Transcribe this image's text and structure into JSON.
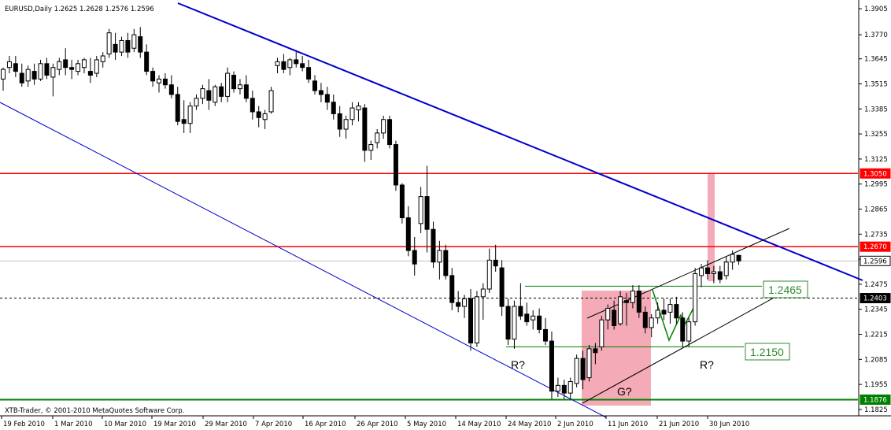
{
  "chart_data": {
    "type": "candlestick",
    "title": "EURUSD,Daily  1.2625 1.2628 1.2576 1.2596",
    "footer": "XTB-Trader, © 2001-2010 MetaQuotes Software Corp.",
    "ylim": [
      1.1792,
      1.3934
    ],
    "y_ticks": [
      "1.3905",
      "1.3770",
      "1.3645",
      "1.3515",
      "1.3385",
      "1.3255",
      "1.3125",
      "1.2995",
      "1.2865",
      "1.2735",
      "1.2605",
      "1.2475",
      "1.2345",
      "1.2215",
      "1.2085",
      "1.1955",
      "1.1825"
    ],
    "x_ticks": [
      "19 Feb 2010",
      "1 Mar 2010",
      "10 Mar 2010",
      "19 Mar 2010",
      "29 Mar 2010",
      "7 Apr 2010",
      "16 Apr 2010",
      "26 Apr 2010",
      "5 May 2010",
      "14 May 2010",
      "24 May 2010",
      "2 Jun 2010",
      "11 Jun 2010",
      "21 Jun 2010",
      "30 Jun 2010"
    ],
    "price_badges": [
      {
        "label": "1.3050",
        "value": 1.305,
        "bg": "#ff0000",
        "fg": "#ffffff"
      },
      {
        "label": "1.2670",
        "value": 1.267,
        "bg": "#ff0000",
        "fg": "#ffffff"
      },
      {
        "label": "1.2596",
        "value": 1.2596,
        "bg": "#ffffff",
        "fg": "#000000"
      },
      {
        "label": "1.2403",
        "value": 1.2403,
        "bg": "#000000",
        "fg": "#ffffff"
      },
      {
        "label": "1.1876",
        "value": 1.1876,
        "bg": "#008000",
        "fg": "#ffffff"
      }
    ],
    "level_labels": [
      "1.2465",
      "1.2150"
    ],
    "annotations": [
      "R?",
      "R?",
      "G?"
    ],
    "colors": {
      "resistance": "#ff0000",
      "support": "#008000",
      "trendline": "#0000cc",
      "highlight": "#f4aab7",
      "candle": "#000000"
    },
    "candles": [
      {
        "o": 1.354,
        "h": 1.36,
        "l": 1.348,
        "c": 1.359
      },
      {
        "o": 1.36,
        "h": 1.366,
        "l": 1.357,
        "c": 1.363
      },
      {
        "o": 1.362,
        "h": 1.366,
        "l": 1.355,
        "c": 1.358
      },
      {
        "o": 1.357,
        "h": 1.362,
        "l": 1.35,
        "c": 1.352
      },
      {
        "o": 1.353,
        "h": 1.361,
        "l": 1.35,
        "c": 1.359
      },
      {
        "o": 1.358,
        "h": 1.362,
        "l": 1.351,
        "c": 1.354
      },
      {
        "o": 1.354,
        "h": 1.364,
        "l": 1.353,
        "c": 1.362
      },
      {
        "o": 1.362,
        "h": 1.365,
        "l": 1.354,
        "c": 1.356
      },
      {
        "o": 1.355,
        "h": 1.362,
        "l": 1.345,
        "c": 1.36
      },
      {
        "o": 1.359,
        "h": 1.365,
        "l": 1.356,
        "c": 1.363
      },
      {
        "o": 1.364,
        "h": 1.37,
        "l": 1.356,
        "c": 1.36
      },
      {
        "o": 1.36,
        "h": 1.364,
        "l": 1.354,
        "c": 1.359
      },
      {
        "o": 1.358,
        "h": 1.364,
        "l": 1.356,
        "c": 1.362
      },
      {
        "o": 1.36,
        "h": 1.365,
        "l": 1.357,
        "c": 1.364
      },
      {
        "o": 1.358,
        "h": 1.365,
        "l": 1.352,
        "c": 1.356
      },
      {
        "o": 1.357,
        "h": 1.366,
        "l": 1.355,
        "c": 1.364
      },
      {
        "o": 1.363,
        "h": 1.368,
        "l": 1.36,
        "c": 1.366
      },
      {
        "o": 1.367,
        "h": 1.38,
        "l": 1.365,
        "c": 1.378
      },
      {
        "o": 1.372,
        "h": 1.378,
        "l": 1.364,
        "c": 1.368
      },
      {
        "o": 1.368,
        "h": 1.376,
        "l": 1.366,
        "c": 1.374
      },
      {
        "o": 1.374,
        "h": 1.378,
        "l": 1.365,
        "c": 1.368
      },
      {
        "o": 1.37,
        "h": 1.38,
        "l": 1.368,
        "c": 1.377
      },
      {
        "o": 1.376,
        "h": 1.381,
        "l": 1.365,
        "c": 1.368
      },
      {
        "o": 1.368,
        "h": 1.372,
        "l": 1.356,
        "c": 1.358
      },
      {
        "o": 1.358,
        "h": 1.36,
        "l": 1.35,
        "c": 1.353
      },
      {
        "o": 1.352,
        "h": 1.356,
        "l": 1.347,
        "c": 1.354
      },
      {
        "o": 1.354,
        "h": 1.357,
        "l": 1.349,
        "c": 1.351
      },
      {
        "o": 1.351,
        "h": 1.356,
        "l": 1.344,
        "c": 1.346
      },
      {
        "o": 1.346,
        "h": 1.35,
        "l": 1.33,
        "c": 1.332
      },
      {
        "o": 1.333,
        "h": 1.343,
        "l": 1.326,
        "c": 1.331
      },
      {
        "o": 1.331,
        "h": 1.342,
        "l": 1.326,
        "c": 1.34
      },
      {
        "o": 1.34,
        "h": 1.346,
        "l": 1.338,
        "c": 1.344
      },
      {
        "o": 1.344,
        "h": 1.351,
        "l": 1.341,
        "c": 1.349
      },
      {
        "o": 1.348,
        "h": 1.354,
        "l": 1.338,
        "c": 1.343
      },
      {
        "o": 1.342,
        "h": 1.351,
        "l": 1.34,
        "c": 1.35
      },
      {
        "o": 1.35,
        "h": 1.352,
        "l": 1.342,
        "c": 1.345
      },
      {
        "o": 1.345,
        "h": 1.36,
        "l": 1.342,
        "c": 1.357
      },
      {
        "o": 1.356,
        "h": 1.358,
        "l": 1.347,
        "c": 1.349
      },
      {
        "o": 1.349,
        "h": 1.354,
        "l": 1.346,
        "c": 1.351
      },
      {
        "o": 1.351,
        "h": 1.356,
        "l": 1.342,
        "c": 1.344
      },
      {
        "o": 1.344,
        "h": 1.348,
        "l": 1.333,
        "c": 1.337
      },
      {
        "o": 1.337,
        "h": 1.34,
        "l": 1.329,
        "c": 1.334
      },
      {
        "o": 1.333,
        "h": 1.338,
        "l": 1.328,
        "c": 1.336
      },
      {
        "o": 1.337,
        "h": 1.35,
        "l": 1.336,
        "c": 1.348
      },
      {
        "o": 1.361,
        "h": 1.365,
        "l": 1.357,
        "c": 1.363
      },
      {
        "o": 1.363,
        "h": 1.367,
        "l": 1.357,
        "c": 1.359
      },
      {
        "o": 1.36,
        "h": 1.365,
        "l": 1.356,
        "c": 1.364
      },
      {
        "o": 1.364,
        "h": 1.368,
        "l": 1.36,
        "c": 1.362
      },
      {
        "o": 1.362,
        "h": 1.366,
        "l": 1.358,
        "c": 1.36
      },
      {
        "o": 1.36,
        "h": 1.364,
        "l": 1.352,
        "c": 1.354
      },
      {
        "o": 1.353,
        "h": 1.356,
        "l": 1.346,
        "c": 1.348
      },
      {
        "o": 1.348,
        "h": 1.352,
        "l": 1.342,
        "c": 1.346
      },
      {
        "o": 1.346,
        "h": 1.35,
        "l": 1.338,
        "c": 1.342
      },
      {
        "o": 1.342,
        "h": 1.346,
        "l": 1.333,
        "c": 1.336
      },
      {
        "o": 1.336,
        "h": 1.34,
        "l": 1.324,
        "c": 1.328
      },
      {
        "o": 1.328,
        "h": 1.335,
        "l": 1.323,
        "c": 1.333
      },
      {
        "o": 1.333,
        "h": 1.342,
        "l": 1.33,
        "c": 1.339
      },
      {
        "o": 1.338,
        "h": 1.342,
        "l": 1.332,
        "c": 1.34
      },
      {
        "o": 1.339,
        "h": 1.341,
        "l": 1.311,
        "c": 1.317
      },
      {
        "o": 1.317,
        "h": 1.322,
        "l": 1.312,
        "c": 1.32
      },
      {
        "o": 1.321,
        "h": 1.328,
        "l": 1.318,
        "c": 1.326
      },
      {
        "o": 1.326,
        "h": 1.335,
        "l": 1.323,
        "c": 1.333
      },
      {
        "o": 1.333,
        "h": 1.335,
        "l": 1.318,
        "c": 1.32
      },
      {
        "o": 1.32,
        "h": 1.322,
        "l": 1.296,
        "c": 1.299
      },
      {
        "o": 1.299,
        "h": 1.3,
        "l": 1.279,
        "c": 1.282
      },
      {
        "o": 1.282,
        "h": 1.288,
        "l": 1.262,
        "c": 1.265
      },
      {
        "o": 1.265,
        "h": 1.272,
        "l": 1.252,
        "c": 1.258
      },
      {
        "o": 1.279,
        "h": 1.298,
        "l": 1.274,
        "c": 1.293
      },
      {
        "o": 1.293,
        "h": 1.309,
        "l": 1.264,
        "c": 1.276
      },
      {
        "o": 1.276,
        "h": 1.28,
        "l": 1.256,
        "c": 1.259
      },
      {
        "o": 1.259,
        "h": 1.27,
        "l": 1.25,
        "c": 1.265
      },
      {
        "o": 1.265,
        "h": 1.268,
        "l": 1.25,
        "c": 1.252
      },
      {
        "o": 1.252,
        "h": 1.256,
        "l": 1.234,
        "c": 1.238
      },
      {
        "o": 1.238,
        "h": 1.244,
        "l": 1.233,
        "c": 1.236
      },
      {
        "o": 1.236,
        "h": 1.242,
        "l": 1.23,
        "c": 1.24
      },
      {
        "o": 1.24,
        "h": 1.245,
        "l": 1.213,
        "c": 1.217
      },
      {
        "o": 1.217,
        "h": 1.244,
        "l": 1.215,
        "c": 1.241
      },
      {
        "o": 1.241,
        "h": 1.248,
        "l": 1.229,
        "c": 1.245
      },
      {
        "o": 1.245,
        "h": 1.266,
        "l": 1.243,
        "c": 1.26
      },
      {
        "o": 1.26,
        "h": 1.268,
        "l": 1.254,
        "c": 1.257
      },
      {
        "o": 1.256,
        "h": 1.26,
        "l": 1.231,
        "c": 1.236
      },
      {
        "o": 1.236,
        "h": 1.24,
        "l": 1.216,
        "c": 1.219
      },
      {
        "o": 1.219,
        "h": 1.239,
        "l": 1.214,
        "c": 1.236
      },
      {
        "o": 1.236,
        "h": 1.248,
        "l": 1.229,
        "c": 1.231
      },
      {
        "o": 1.232,
        "h": 1.238,
        "l": 1.226,
        "c": 1.228
      },
      {
        "o": 1.229,
        "h": 1.234,
        "l": 1.224,
        "c": 1.231
      },
      {
        "o": 1.231,
        "h": 1.235,
        "l": 1.222,
        "c": 1.224
      },
      {
        "o": 1.224,
        "h": 1.23,
        "l": 1.216,
        "c": 1.218
      },
      {
        "o": 1.218,
        "h": 1.223,
        "l": 1.188,
        "c": 1.192
      },
      {
        "o": 1.192,
        "h": 1.199,
        "l": 1.189,
        "c": 1.195
      },
      {
        "o": 1.195,
        "h": 1.198,
        "l": 1.188,
        "c": 1.191
      },
      {
        "o": 1.191,
        "h": 1.199,
        "l": 1.188,
        "c": 1.197
      },
      {
        "o": 1.196,
        "h": 1.211,
        "l": 1.194,
        "c": 1.209
      },
      {
        "o": 1.209,
        "h": 1.213,
        "l": 1.193,
        "c": 1.198
      },
      {
        "o": 1.199,
        "h": 1.216,
        "l": 1.197,
        "c": 1.214
      },
      {
        "o": 1.214,
        "h": 1.217,
        "l": 1.206,
        "c": 1.212
      },
      {
        "o": 1.215,
        "h": 1.231,
        "l": 1.213,
        "c": 1.229
      },
      {
        "o": 1.229,
        "h": 1.237,
        "l": 1.224,
        "c": 1.235
      },
      {
        "o": 1.234,
        "h": 1.239,
        "l": 1.224,
        "c": 1.226
      },
      {
        "o": 1.227,
        "h": 1.244,
        "l": 1.226,
        "c": 1.241
      },
      {
        "o": 1.239,
        "h": 1.243,
        "l": 1.226,
        "c": 1.238
      },
      {
        "o": 1.238,
        "h": 1.247,
        "l": 1.235,
        "c": 1.244
      },
      {
        "o": 1.244,
        "h": 1.247,
        "l": 1.23,
        "c": 1.233
      },
      {
        "o": 1.233,
        "h": 1.236,
        "l": 1.222,
        "c": 1.225
      },
      {
        "o": 1.225,
        "h": 1.232,
        "l": 1.22,
        "c": 1.23
      },
      {
        "o": 1.23,
        "h": 1.238,
        "l": 1.227,
        "c": 1.234
      },
      {
        "o": 1.234,
        "h": 1.24,
        "l": 1.229,
        "c": 1.232
      },
      {
        "o": 1.233,
        "h": 1.24,
        "l": 1.227,
        "c": 1.237
      },
      {
        "o": 1.237,
        "h": 1.241,
        "l": 1.227,
        "c": 1.23
      },
      {
        "o": 1.23,
        "h": 1.233,
        "l": 1.215,
        "c": 1.218
      },
      {
        "o": 1.218,
        "h": 1.23,
        "l": 1.215,
        "c": 1.228
      },
      {
        "o": 1.228,
        "h": 1.256,
        "l": 1.226,
        "c": 1.253
      },
      {
        "o": 1.252,
        "h": 1.258,
        "l": 1.246,
        "c": 1.256
      },
      {
        "o": 1.256,
        "h": 1.26,
        "l": 1.25,
        "c": 1.253
      },
      {
        "o": 1.253,
        "h": 1.257,
        "l": 1.248,
        "c": 1.254
      },
      {
        "o": 1.254,
        "h": 1.257,
        "l": 1.248,
        "c": 1.25
      },
      {
        "o": 1.252,
        "h": 1.262,
        "l": 1.25,
        "c": 1.259
      },
      {
        "o": 1.259,
        "h": 1.265,
        "l": 1.255,
        "c": 1.263
      },
      {
        "o": 1.2625,
        "h": 1.2628,
        "l": 1.2576,
        "c": 1.2596
      }
    ]
  }
}
